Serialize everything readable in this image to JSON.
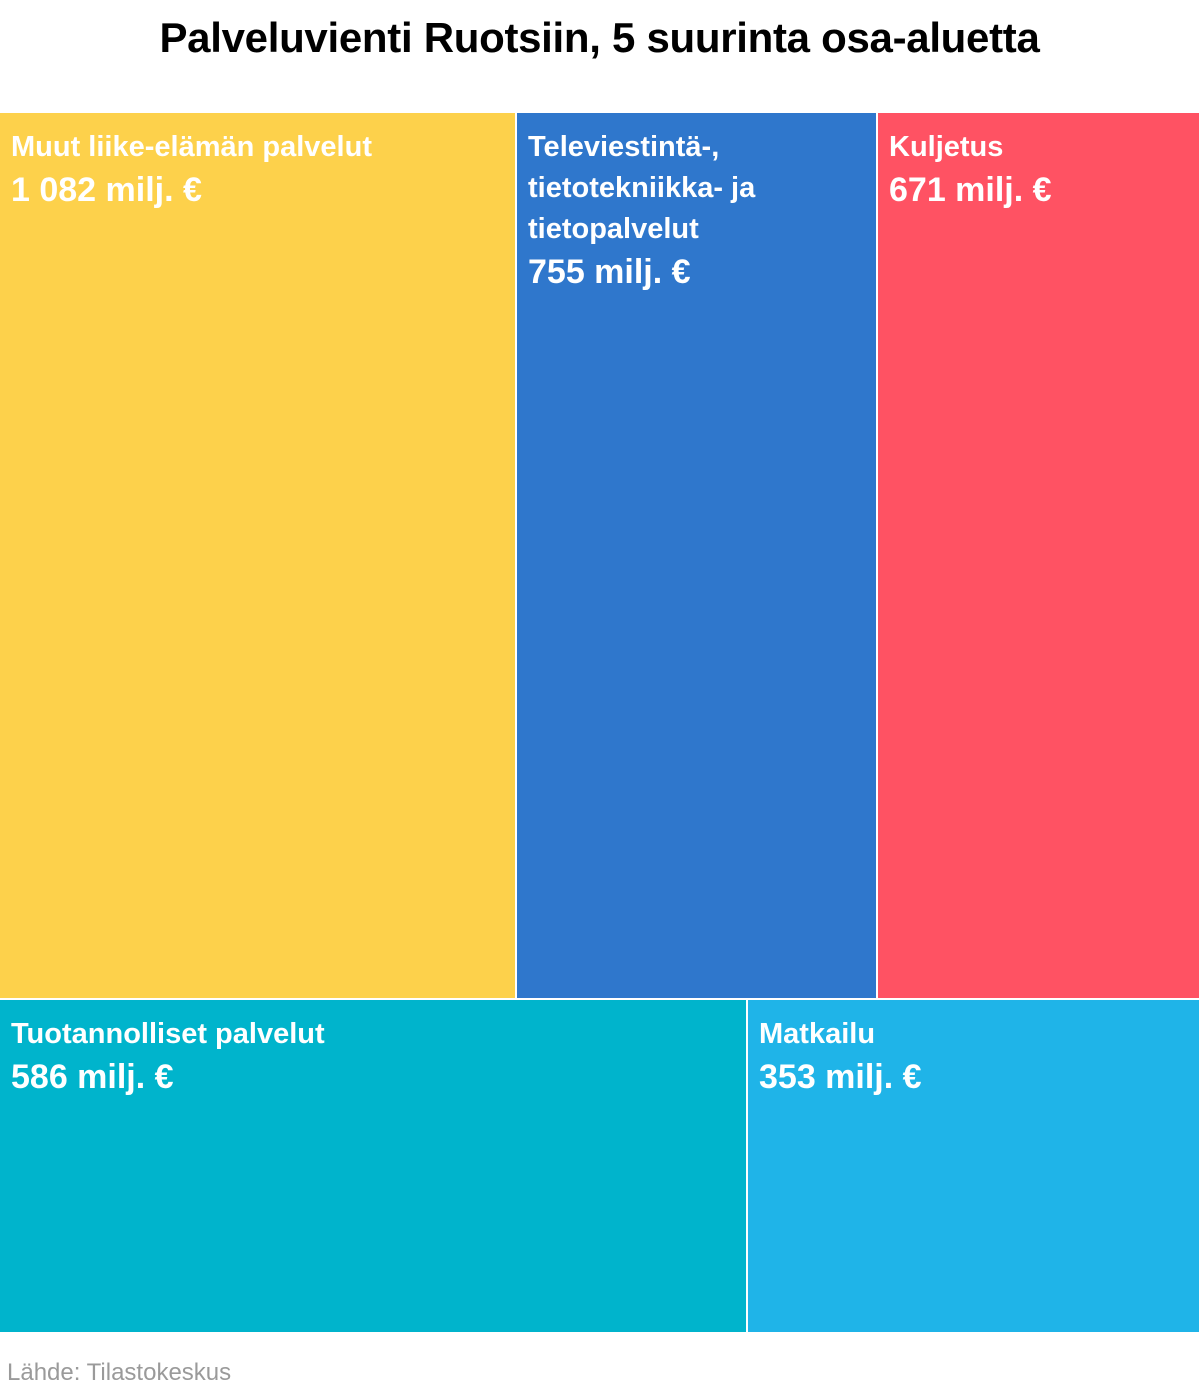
{
  "chart_data": {
    "type": "treemap",
    "title": "Palveluvienti Ruotsiin, 5 suurinta osa-aluetta",
    "unit": "milj. €",
    "source": "Lähde: Tilastokeskus",
    "items": [
      {
        "name": "Muut liike-elämän palvelut",
        "value": 1082,
        "value_label": "1 082 milj. €",
        "color": "#fdd14b"
      },
      {
        "name": "Televiestintä-, tietotekniikka- ja tietopalvelut",
        "value": 755,
        "value_label": "755 milj. €",
        "color": "#2f77cc"
      },
      {
        "name": "Kuljetus",
        "value": 671,
        "value_label": "671 milj. €",
        "color": "#ff5263"
      },
      {
        "name": "Tuotannolliset palvelut",
        "value": 586,
        "value_label": "586 milj. €",
        "color": "#00b4cc"
      },
      {
        "name": "Matkailu",
        "value": 353,
        "value_label": "353 milj. €",
        "color": "#1fb4e8"
      }
    ]
  }
}
